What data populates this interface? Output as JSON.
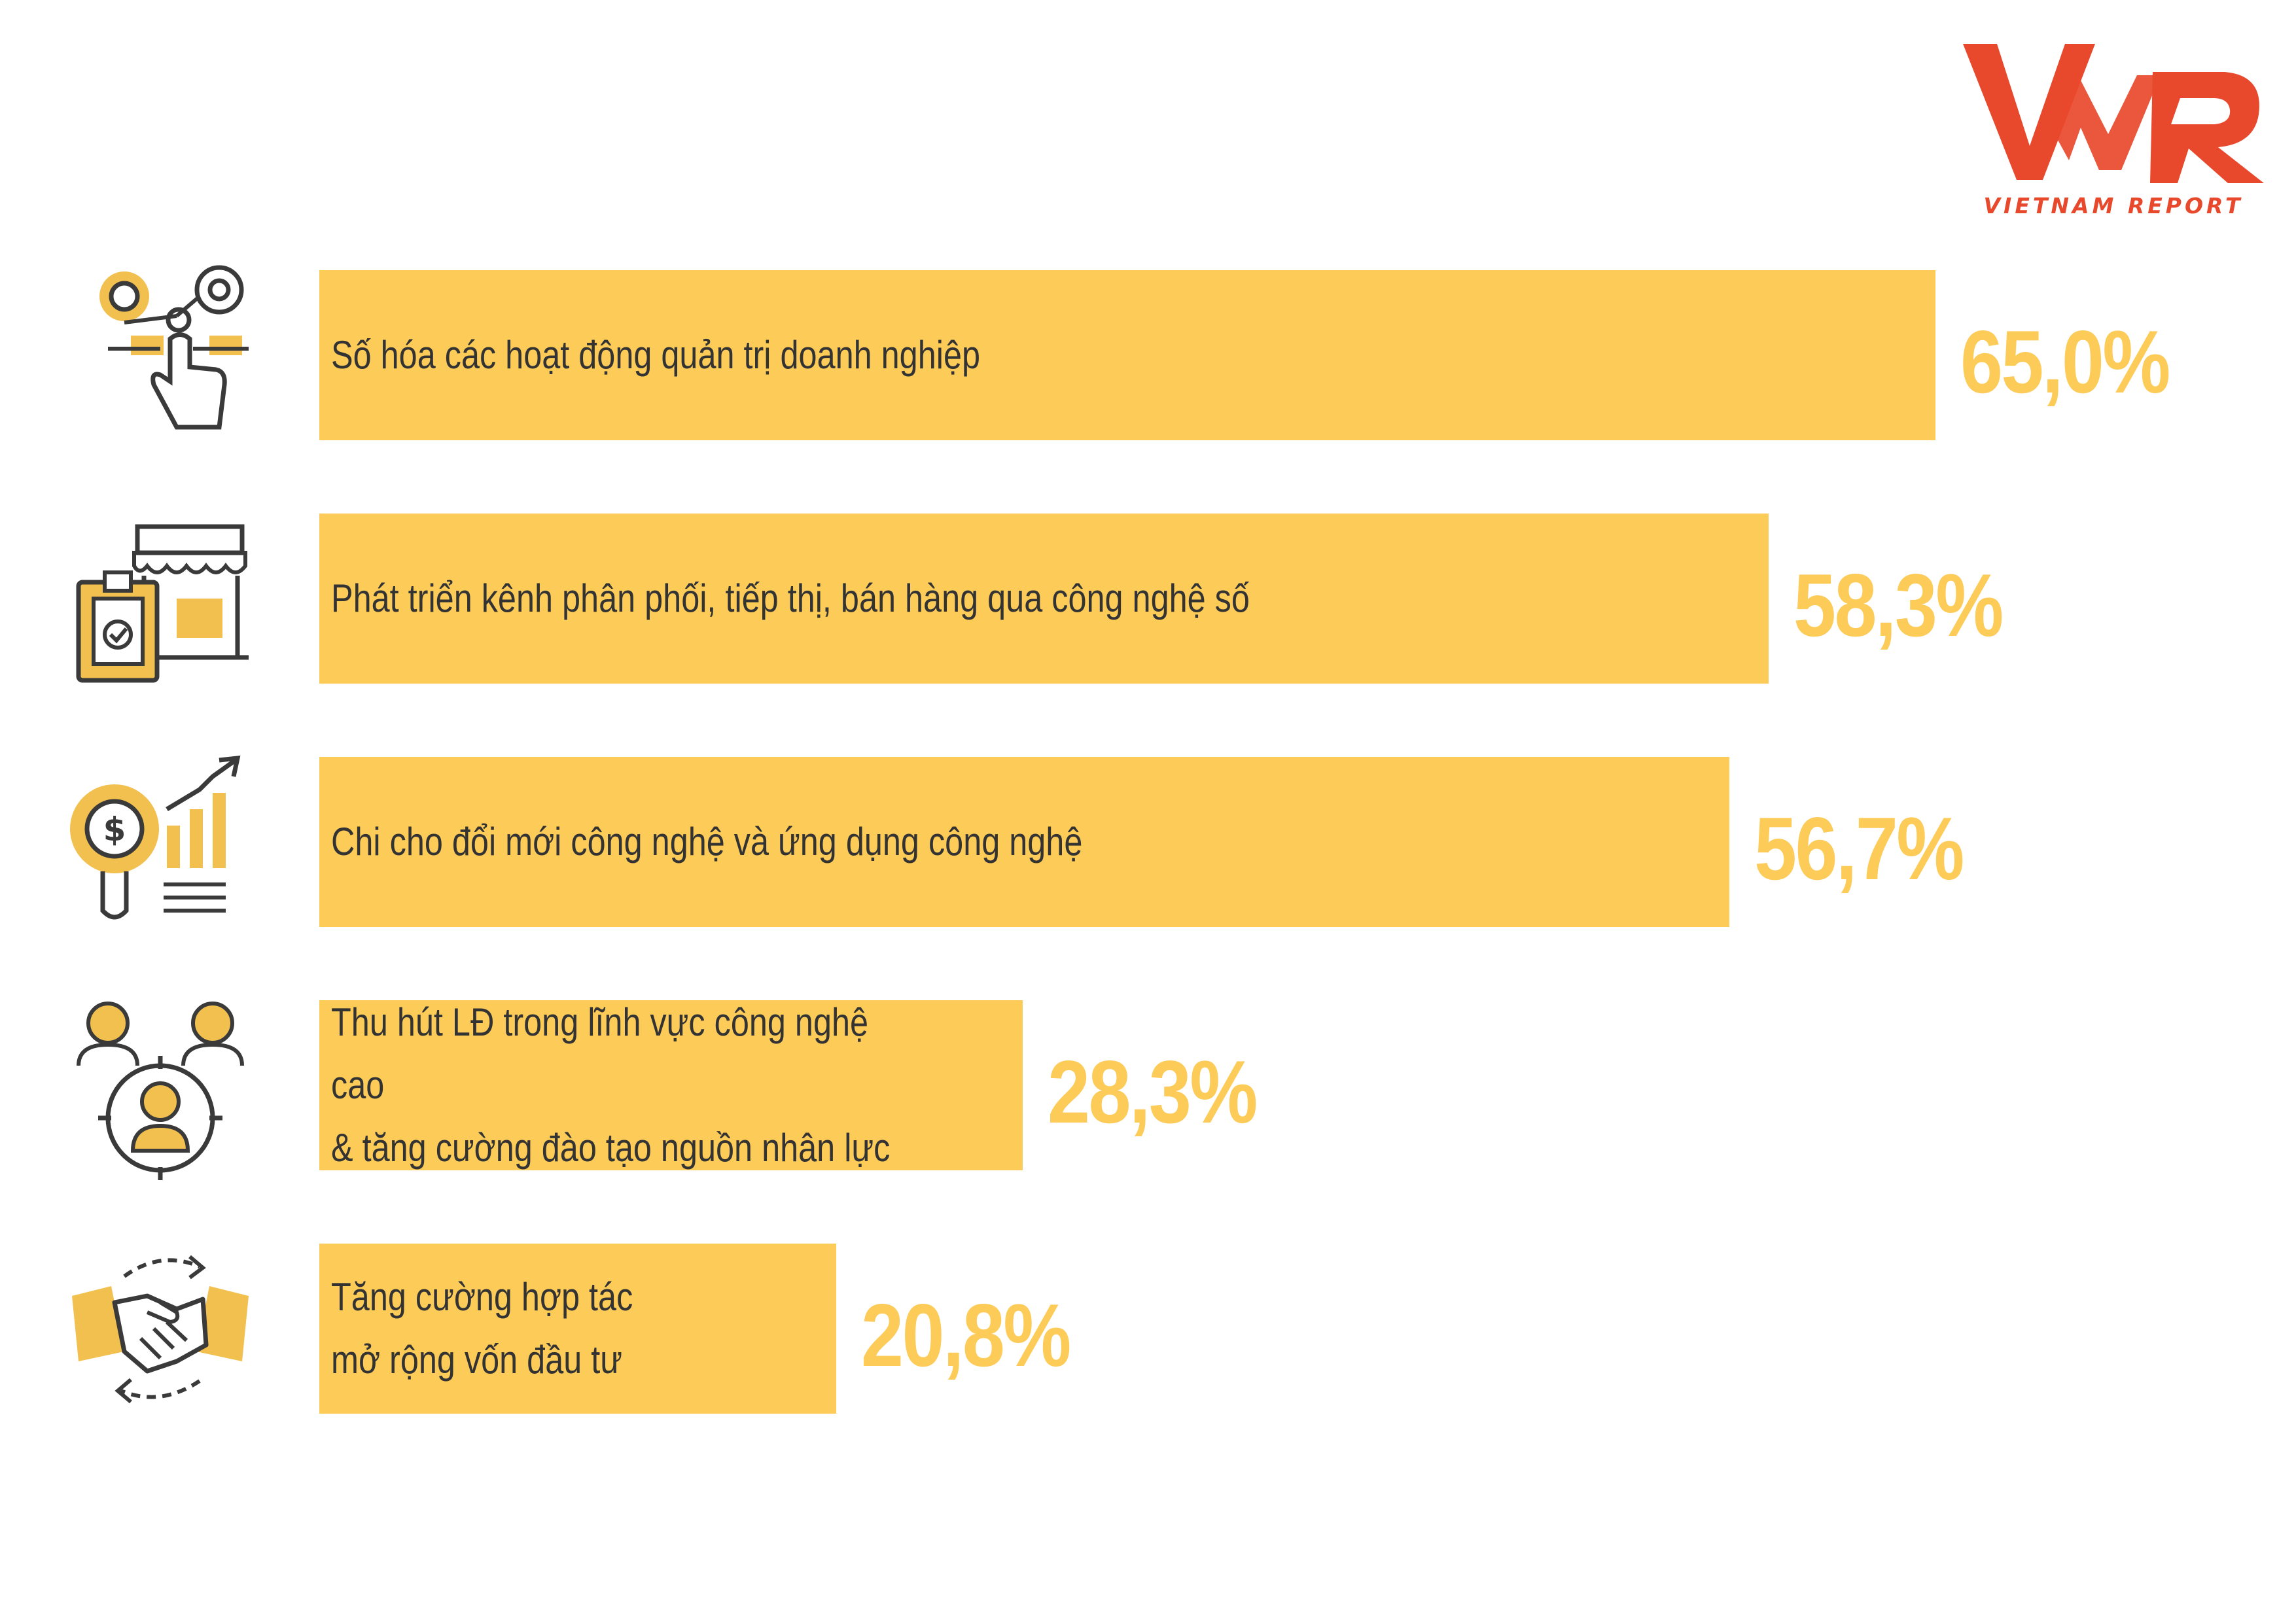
{
  "logo": {
    "mark": "VNR",
    "caption": "VIETNAM REPORT",
    "color": "#e8492c"
  },
  "chart_data": {
    "type": "bar",
    "orientation": "horizontal",
    "categories": [
      "Số hóa các hoạt động quản trị doanh nghiệp",
      "Phát triển kênh phân phối, tiếp thị, bán hàng qua công nghệ số",
      "Chi cho đổi mới công nghệ và ứng dụng công nghệ",
      "Thu hút LĐ trong lĩnh vực công nghệ cao\n& tăng cường đào tạo nguồn nhân lực",
      "Tăng cường hợp tác\nmở rộng vốn đầu tư"
    ],
    "values": [
      65.0,
      58.3,
      56.7,
      28.3,
      20.8
    ],
    "value_labels": [
      "65,0%",
      "58,3%",
      "56,7%",
      "28,3%",
      "20,8%"
    ],
    "icons": [
      "digital-management-icon",
      "online-store-icon",
      "investment-growth-icon",
      "recruitment-target-icon",
      "handshake-icon"
    ],
    "title": "",
    "xlabel": "",
    "ylabel": "",
    "xlim": [
      0,
      65
    ],
    "grid": false,
    "colors": {
      "bar": "#fccb58",
      "value": "#fccb58",
      "label": "#333333",
      "icon_dark": "#3a3a3a",
      "icon_accent": "#f2c04e"
    }
  }
}
